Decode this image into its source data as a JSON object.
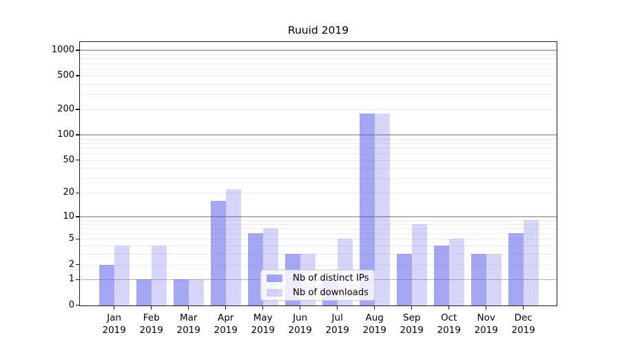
{
  "chart_data": {
    "type": "bar",
    "title": "Ruuid 2019",
    "categories": [
      {
        "month": "Jan",
        "year": "2019"
      },
      {
        "month": "Feb",
        "year": "2019"
      },
      {
        "month": "Mar",
        "year": "2019"
      },
      {
        "month": "Apr",
        "year": "2019"
      },
      {
        "month": "May",
        "year": "2019"
      },
      {
        "month": "Jun",
        "year": "2019"
      },
      {
        "month": "Jul",
        "year": "2019"
      },
      {
        "month": "Aug",
        "year": "2019"
      },
      {
        "month": "Sep",
        "year": "2019"
      },
      {
        "month": "Oct",
        "year": "2019"
      },
      {
        "month": "Nov",
        "year": "2019"
      },
      {
        "month": "Dec",
        "year": "2019"
      }
    ],
    "series": [
      {
        "name": "Nb of distinct IPs",
        "color": "rgba(85,85,230,0.52)",
        "values": [
          2,
          1,
          1,
          16,
          6,
          3,
          1,
          180,
          3,
          4,
          3,
          6
        ]
      },
      {
        "name": "Nb of downloads",
        "color": "rgba(85,85,230,0.24)",
        "values": [
          4,
          4,
          1,
          22,
          7,
          3,
          5,
          180,
          8,
          5,
          3,
          9
        ]
      }
    ],
    "y_scale": "log10(1+y)",
    "y_ticks": [
      0,
      1,
      2,
      5,
      10,
      20,
      50,
      100,
      200,
      500,
      1000
    ],
    "y_major_gridlines": [
      1,
      10,
      100,
      1000
    ],
    "y_minor_gridlines": [
      2,
      3,
      4,
      5,
      6,
      7,
      8,
      9,
      20,
      30,
      40,
      50,
      60,
      70,
      80,
      90,
      200,
      300,
      400,
      500,
      600,
      700,
      800,
      900
    ],
    "grid": true,
    "legend_position": "lower center",
    "colors": {
      "bar_distinct_ips": "#a6a6f2",
      "bar_downloads": "#d6d6f9",
      "major_grid": "#b2b2b2",
      "minor_grid": "#ebebeb",
      "spine": "#1a1a1a",
      "legend_border": "#cccccc"
    }
  }
}
